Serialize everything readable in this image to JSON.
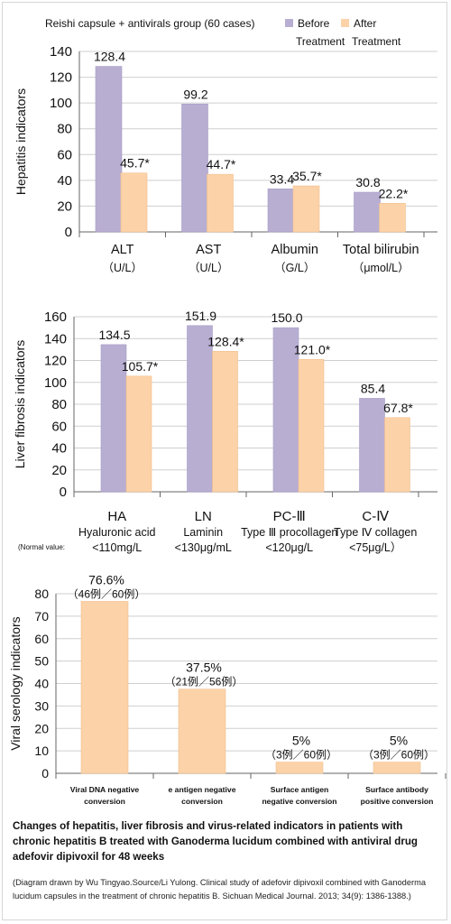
{
  "colors": {
    "before": "#b8aed2",
    "after": "#fcd2a8",
    "axis": "#666666"
  },
  "chart_data": [
    {
      "type": "bar",
      "ylabel": "Hepatitis indicators",
      "ylim": [
        0,
        140
      ],
      "yticks": [
        0,
        20,
        40,
        60,
        80,
        100,
        120,
        140
      ],
      "grid": true,
      "legend": {
        "title": "Reishi capsule + antivirals group (60 cases)",
        "items": [
          {
            "label_line1": "Before",
            "label_line2": "Treatment"
          },
          {
            "label_line1": "After",
            "label_line2": "Treatment"
          }
        ],
        "placement": "top"
      },
      "categories": [
        {
          "name": "ALT",
          "sub": "（U/L）"
        },
        {
          "name": "AST",
          "sub": "（U/L）"
        },
        {
          "name": "Albumin",
          "sub": "（G/L）"
        },
        {
          "name": "Total bilirubin",
          "sub": "（μmol/L）"
        }
      ],
      "series": [
        {
          "name": "Before Treatment",
          "values": [
            128.4,
            99.2,
            33.4,
            30.8
          ],
          "labels": [
            "128.4",
            "99.2",
            "33.4",
            "30.8"
          ]
        },
        {
          "name": "After Treatment",
          "values": [
            45.7,
            44.7,
            35.7,
            22.2
          ],
          "labels": [
            "45.7*",
            "44.7*",
            "35.7*",
            "22.2*"
          ]
        }
      ]
    },
    {
      "type": "bar",
      "ylabel": "Liver fibrosis indicators",
      "ylim": [
        0,
        160
      ],
      "yticks": [
        0,
        20,
        40,
        60,
        80,
        100,
        120,
        140,
        160
      ],
      "grid": true,
      "normal_value_label": "Normal value",
      "categories": [
        {
          "name": "HA",
          "full": "Hyaluronic acid",
          "normal": "<110mg/L"
        },
        {
          "name": "LN",
          "full": "Laminin",
          "normal": "<130μg/mL"
        },
        {
          "name": "PC-Ⅲ",
          "full": "Type Ⅲ procollagen",
          "normal": "<120μg/L"
        },
        {
          "name": "C-Ⅳ",
          "full": "Type Ⅳ collagen",
          "normal": "<75μg/L）"
        }
      ],
      "series": [
        {
          "name": "Before Treatment",
          "values": [
            134.5,
            151.9,
            150.0,
            85.4
          ],
          "labels": [
            "134.5",
            "151.9",
            "150.0",
            "85.4"
          ]
        },
        {
          "name": "After Treatment",
          "values": [
            105.7,
            128.4,
            121.0,
            67.8
          ],
          "labels": [
            "105.7*",
            "128.4*",
            "121.0*",
            "67.8*"
          ]
        }
      ]
    },
    {
      "type": "bar",
      "ylabel": "Viral serology indicators",
      "ylim": [
        0,
        80
      ],
      "yticks": [
        0,
        10,
        20,
        30,
        40,
        50,
        60,
        70,
        80
      ],
      "grid": true,
      "categories": [
        {
          "line1": "Viral DNA negative",
          "line2": "conversion"
        },
        {
          "line1": "e antigen negative",
          "line2": "conversion"
        },
        {
          "line1": "Surface antigen",
          "line2": "negative conversion"
        },
        {
          "line1": "Surface antibody",
          "line2": "positive conversion"
        }
      ],
      "series": [
        {
          "name": "After Treatment",
          "values": [
            76.6,
            37.5,
            5,
            5
          ],
          "labels": [
            "76.6%",
            "37.5%",
            "5%",
            "5%"
          ],
          "sublabels": [
            "（46例／60例）",
            "（21例／56例）",
            "（3例／60例）",
            "（3例／60例）"
          ]
        }
      ]
    }
  ],
  "caption": "Changes of hepatitis, liver fibrosis and virus-related indicators in patients with chronic hepatitis B treated with Ganoderma lucidum combined with antiviral drug adefovir dipivoxil for 48 weeks",
  "source": "(Diagram drawn by Wu Tingyao.Source/Li Yulong. Clinical study of adefovir dipivoxil combined with Ganoderma lucidum capsules in the treatment of chronic hepatitis B. Sichuan Medical Journal. 2013; 34(9): 1386-1388.)"
}
